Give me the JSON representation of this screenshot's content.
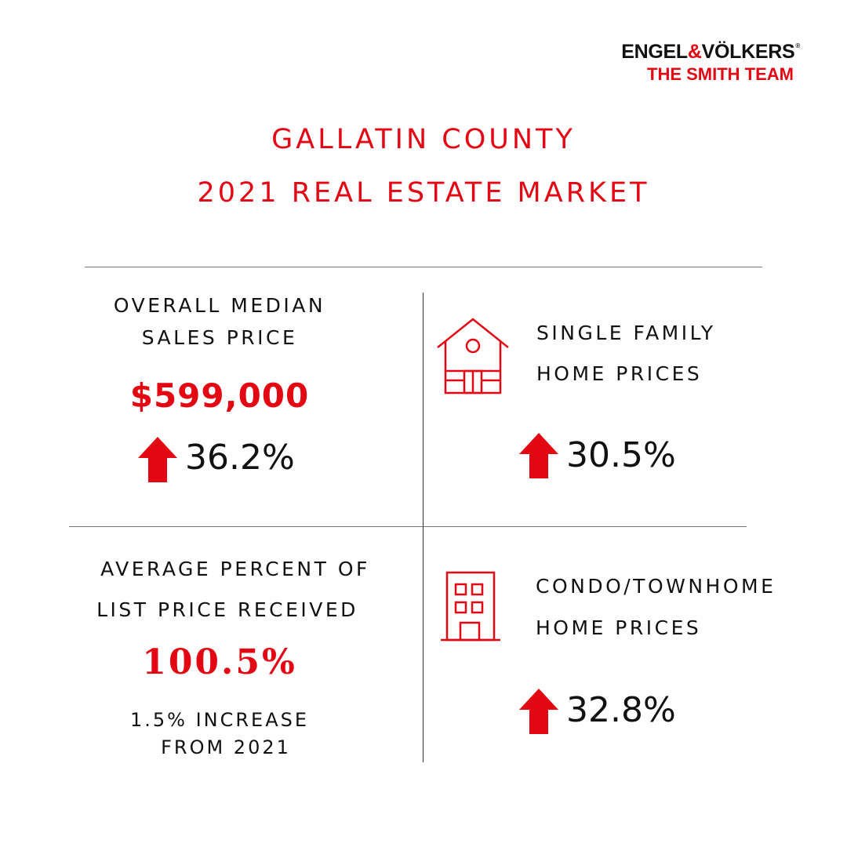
{
  "brand": {
    "name_part1": "ENGEL",
    "ampersand": "&",
    "name_part2": "VÖLKERS",
    "registered_mark": "®",
    "team": "THE SMITH TEAM"
  },
  "title": {
    "line1": "GALLATIN COUNTY",
    "line2": "2021 REAL ESTATE MARKET"
  },
  "stats": {
    "median": {
      "label_line1": "OVERALL MEDIAN",
      "label_line2": "SALES PRICE",
      "value": "$599,000",
      "change": "36.2%",
      "direction": "up"
    },
    "single_family": {
      "label_line1": "SINGLE FAMILY",
      "label_line2": "HOME PRICES",
      "icon": "house-icon",
      "change": "30.5%",
      "direction": "up"
    },
    "list_price": {
      "label_line1": "AVERAGE PERCENT OF",
      "label_line2": "LIST PRICE RECEIVED",
      "value": "100.5%",
      "note_line1": "1.5% INCREASE",
      "note_line2": "FROM 2021"
    },
    "condo": {
      "label_line1": "CONDO/TOWNHOME",
      "label_line2": "HOME PRICES",
      "icon": "building-icon",
      "change": "32.8%",
      "direction": "up"
    }
  },
  "colors": {
    "accent": "#e30613",
    "text": "#111111",
    "divider": "#777777"
  }
}
